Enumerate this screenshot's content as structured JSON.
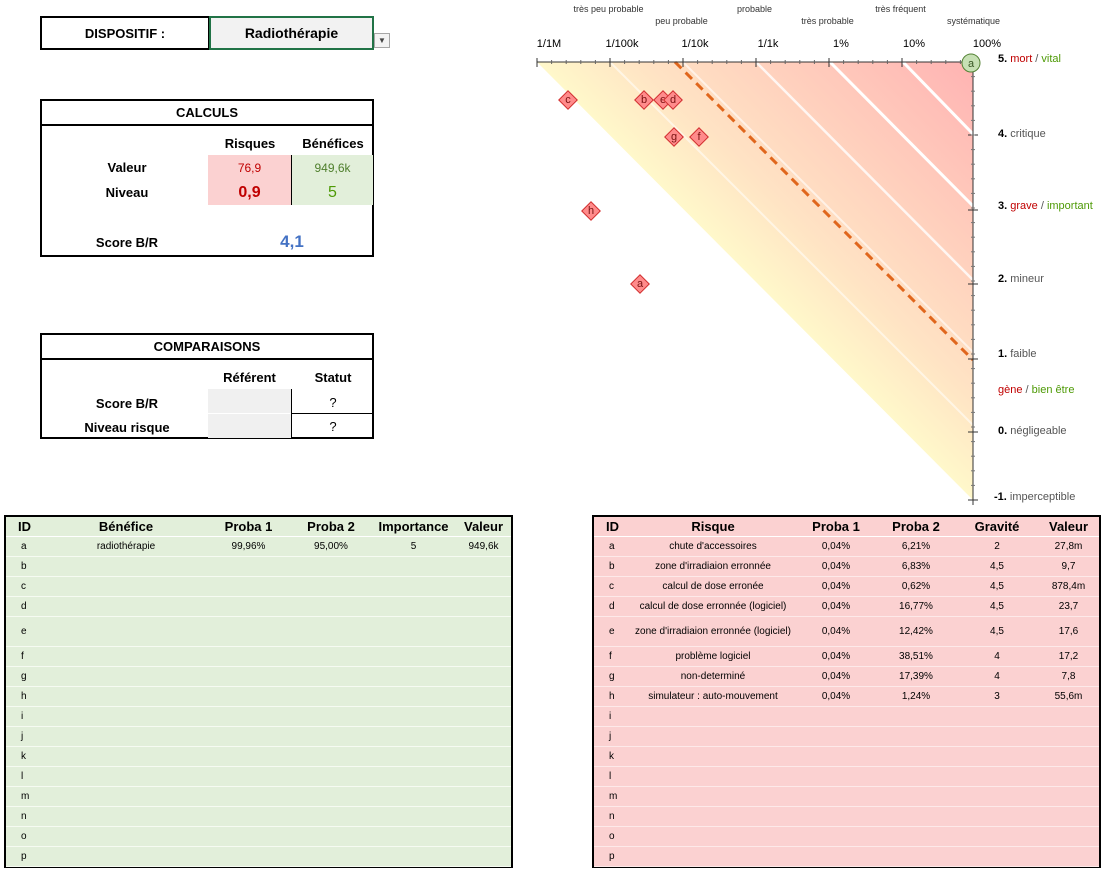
{
  "dispositif": {
    "label": "DISPOSITIF :",
    "value": "Radiothérapie"
  },
  "calculs": {
    "title": "CALCULS",
    "col_risques": "Risques",
    "col_benefices": "Bénéfices",
    "row_valeur": "Valeur",
    "row_niveau": "Niveau",
    "valeur_risques": "76,9",
    "valeur_benefices": "949,6k",
    "niveau_risques": "0,9",
    "niveau_benefices": "5",
    "score_label": "Score B/R",
    "score_value": "4,1"
  },
  "comparaisons": {
    "title": "COMPARAISONS",
    "col_referent": "Référent",
    "col_statut": "Statut",
    "row_score": "Score B/R",
    "row_niveau": "Niveau risque",
    "score_statut": "?",
    "niveau_statut": "?"
  },
  "chart": {
    "top_ticks": [
      "1/1M",
      "1/100k",
      "1/10k",
      "1/1k",
      "1%",
      "10%",
      "100%"
    ],
    "categories": [
      {
        "text": "très peu probable",
        "row": 0
      },
      {
        "text": "peu probable",
        "row": 1
      },
      {
        "text": "probable",
        "row": 0
      },
      {
        "text": "très probable",
        "row": 1
      },
      {
        "text": "très fréquent",
        "row": 0
      },
      {
        "text": "systématique",
        "row": 1
      }
    ],
    "side_labels": [
      {
        "num": "5.",
        "parts": [
          {
            "t": "mort",
            "c": "#c00000"
          },
          {
            "t": " / ",
            "c": "#555555"
          },
          {
            "t": "vital",
            "c": "#4e9a06"
          }
        ]
      },
      {
        "num": "4.",
        "parts": [
          {
            "t": "critique",
            "c": "#555555"
          }
        ]
      },
      {
        "num": "3.",
        "parts": [
          {
            "t": "grave",
            "c": "#c00000"
          },
          {
            "t": " / ",
            "c": "#555555"
          },
          {
            "t": "important",
            "c": "#4e9a06"
          }
        ]
      },
      {
        "num": "2.",
        "parts": [
          {
            "t": "mineur",
            "c": "#555555"
          }
        ]
      },
      {
        "num": "1.",
        "parts": [
          {
            "t": "faible",
            "c": "#555555"
          }
        ]
      },
      {
        "num": "",
        "parts": [
          {
            "t": "gène",
            "c": "#c00000"
          },
          {
            "t": " / ",
            "c": "#555555"
          },
          {
            "t": "bien être",
            "c": "#4e9a06"
          }
        ]
      },
      {
        "num": "0.",
        "parts": [
          {
            "t": "négligeable",
            "c": "#555555"
          }
        ]
      },
      {
        "num": "-1.",
        "parts": [
          {
            "t": "imperceptible",
            "c": "#555555"
          }
        ]
      }
    ],
    "benefit_marker": "a",
    "risk_markers": [
      "c",
      "b",
      "e",
      "d",
      "g",
      "f",
      "h",
      "a"
    ]
  },
  "benefices": {
    "headers": [
      "ID",
      "Bénéfice",
      "Proba 1",
      "Proba 2",
      "Importance",
      "Valeur"
    ],
    "rows": [
      [
        "a",
        "radiothérapie",
        "99,96%",
        "95,00%",
        "5",
        "949,6k"
      ],
      [
        "b",
        "",
        "",
        "",
        "",
        ""
      ],
      [
        "c",
        "",
        "",
        "",
        "",
        ""
      ],
      [
        "d",
        "",
        "",
        "",
        "",
        ""
      ],
      [
        "e",
        "",
        "",
        "",
        "",
        ""
      ],
      [
        "f",
        "",
        "",
        "",
        "",
        ""
      ],
      [
        "g",
        "",
        "",
        "",
        "",
        ""
      ],
      [
        "h",
        "",
        "",
        "",
        "",
        ""
      ],
      [
        "i",
        "",
        "",
        "",
        "",
        ""
      ],
      [
        "j",
        "",
        "",
        "",
        "",
        ""
      ],
      [
        "k",
        "",
        "",
        "",
        "",
        ""
      ],
      [
        "l",
        "",
        "",
        "",
        "",
        ""
      ],
      [
        "m",
        "",
        "",
        "",
        "",
        ""
      ],
      [
        "n",
        "",
        "",
        "",
        "",
        ""
      ],
      [
        "o",
        "",
        "",
        "",
        "",
        ""
      ],
      [
        "p",
        "",
        "",
        "",
        "",
        ""
      ]
    ]
  },
  "risques": {
    "headers": [
      "ID",
      "Risque",
      "Proba 1",
      "Proba 2",
      "Gravité",
      "Valeur"
    ],
    "rows": [
      [
        "a",
        "chute d'accessoires",
        "0,04%",
        "6,21%",
        "2",
        "27,8m"
      ],
      [
        "b",
        "zone d'irradiaion erronnée",
        "0,04%",
        "6,83%",
        "4,5",
        "9,7"
      ],
      [
        "c",
        "calcul de dose erronée",
        "0,04%",
        "0,62%",
        "4,5",
        "878,4m"
      ],
      [
        "d",
        "calcul de dose erronnée (logiciel)",
        "0,04%",
        "16,77%",
        "4,5",
        "23,7"
      ],
      [
        "e",
        "zone d'irradiaion erronnée (logiciel)",
        "0,04%",
        "12,42%",
        "4,5",
        "17,6"
      ],
      [
        "f",
        "problème logiciel",
        "0,04%",
        "38,51%",
        "4",
        "17,2"
      ],
      [
        "g",
        "non-determiné",
        "0,04%",
        "17,39%",
        "4",
        "7,8"
      ],
      [
        "h",
        "simulateur : auto-mouvement",
        "0,04%",
        "1,24%",
        "3",
        "55,6m"
      ],
      [
        "i",
        "",
        "",
        "",
        "",
        ""
      ],
      [
        "j",
        "",
        "",
        "",
        "",
        ""
      ],
      [
        "k",
        "",
        "",
        "",
        "",
        ""
      ],
      [
        "l",
        "",
        "",
        "",
        "",
        ""
      ],
      [
        "m",
        "",
        "",
        "",
        "",
        ""
      ],
      [
        "n",
        "",
        "",
        "",
        "",
        ""
      ],
      [
        "o",
        "",
        "",
        "",
        "",
        ""
      ],
      [
        "p",
        "",
        "",
        "",
        "",
        ""
      ]
    ]
  }
}
